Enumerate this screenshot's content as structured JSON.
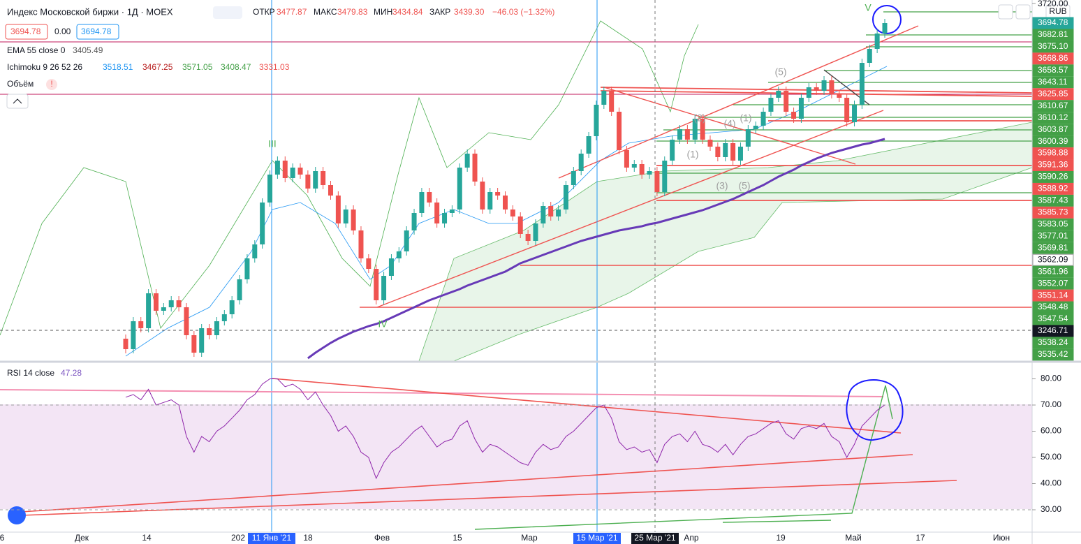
{
  "chart_data": {
    "type": "candlestick",
    "title": "Индекс Московской биржи · 1Д · MOEX",
    "ohlc_header": {
      "open_label": "ОТКР",
      "open": "3477.87",
      "high_label": "МАКС",
      "high": "3479.83",
      "low_label": "МИН",
      "low": "3434.84",
      "close_label": "ЗАКР",
      "close": "3439.30",
      "change": "−46.03 (−1.32%)"
    },
    "price_boxes": [
      "3694.78",
      "0.00",
      "3694.78"
    ],
    "ema_legend": {
      "name": "EMA 55 close 0",
      "value": "3405.49"
    },
    "ichimoku_legend": {
      "name": "Ichimoku 9 26 52 26",
      "values": [
        "3518.51",
        "3467.25",
        "3571.05",
        "3408.47",
        "3331.03"
      ]
    },
    "volume_legend": {
      "name": "Объём",
      "warning": "!"
    },
    "currency": "RUB",
    "ylim": [
      3208,
      3725
    ],
    "yticks": [
      {
        "value": 3720,
        "label": "3720.00"
      }
    ],
    "up_color": "#26a69a",
    "down_color": "#ef5350",
    "candles": [
      [
        3240,
        3246,
        3219,
        3225
      ],
      [
        3225,
        3271,
        3219,
        3265
      ],
      [
        3265,
        3271,
        3249,
        3255
      ],
      [
        3255,
        3311,
        3249,
        3305
      ],
      [
        3305,
        3311,
        3274,
        3280
      ],
      [
        3280,
        3291,
        3274,
        3285
      ],
      [
        3285,
        3301,
        3279,
        3295
      ],
      [
        3295,
        3301,
        3279,
        3285
      ],
      [
        3285,
        3291,
        3239,
        3245
      ],
      [
        3245,
        3251,
        3214,
        3220
      ],
      [
        3220,
        3261,
        3214,
        3255
      ],
      [
        3255,
        3261,
        3239,
        3245
      ],
      [
        3245,
        3271,
        3239,
        3265
      ],
      [
        3265,
        3281,
        3259,
        3275
      ],
      [
        3275,
        3301,
        3269,
        3295
      ],
      [
        3295,
        3331,
        3289,
        3325
      ],
      [
        3325,
        3361,
        3319,
        3355
      ],
      [
        3355,
        3381,
        3349,
        3375
      ],
      [
        3375,
        3441,
        3369,
        3435
      ],
      [
        3435,
        3481,
        3429,
        3475
      ],
      [
        3475,
        3501,
        3469,
        3495
      ],
      [
        3495,
        3501,
        3464,
        3470
      ],
      [
        3470,
        3491,
        3464,
        3485
      ],
      [
        3485,
        3491,
        3469,
        3475
      ],
      [
        3475,
        3481,
        3449,
        3455
      ],
      [
        3455,
        3486,
        3449,
        3480
      ],
      [
        3480,
        3486,
        3454,
        3460
      ],
      [
        3460,
        3466,
        3439,
        3445
      ],
      [
        3445,
        3451,
        3399,
        3405
      ],
      [
        3405,
        3431,
        3399,
        3425
      ],
      [
        3425,
        3431,
        3389,
        3395
      ],
      [
        3395,
        3401,
        3349,
        3355
      ],
      [
        3355,
        3361,
        3334,
        3340
      ],
      [
        3340,
        3346,
        3289,
        3295
      ],
      [
        3295,
        3336,
        3289,
        3330
      ],
      [
        3330,
        3361,
        3324,
        3355
      ],
      [
        3355,
        3371,
        3349,
        3365
      ],
      [
        3365,
        3401,
        3359,
        3395
      ],
      [
        3395,
        3426,
        3389,
        3420
      ],
      [
        3420,
        3456,
        3414,
        3450
      ],
      [
        3450,
        3456,
        3429,
        3435
      ],
      [
        3435,
        3441,
        3399,
        3405
      ],
      [
        3405,
        3426,
        3399,
        3420
      ],
      [
        3420,
        3431,
        3414,
        3425
      ],
      [
        3425,
        3491,
        3419,
        3485
      ],
      [
        3485,
        3511,
        3479,
        3505
      ],
      [
        3505,
        3511,
        3459,
        3465
      ],
      [
        3465,
        3471,
        3419,
        3425
      ],
      [
        3425,
        3456,
        3419,
        3450
      ],
      [
        3450,
        3456,
        3439,
        3445
      ],
      [
        3445,
        3451,
        3419,
        3425
      ],
      [
        3425,
        3431,
        3409,
        3415
      ],
      [
        3415,
        3421,
        3384,
        3390
      ],
      [
        3390,
        3396,
        3374,
        3380
      ],
      [
        3380,
        3411,
        3374,
        3405
      ],
      [
        3405,
        3436,
        3399,
        3430
      ],
      [
        3430,
        3436,
        3409,
        3415
      ],
      [
        3415,
        3431,
        3409,
        3425
      ],
      [
        3425,
        3466,
        3419,
        3460
      ],
      [
        3460,
        3486,
        3454,
        3480
      ],
      [
        3480,
        3511,
        3474,
        3505
      ],
      [
        3505,
        3536,
        3499,
        3530
      ],
      [
        3530,
        3581,
        3524,
        3575
      ],
      [
        3575,
        3601,
        3569,
        3595
      ],
      [
        3595,
        3601,
        3559,
        3565
      ],
      [
        3565,
        3571,
        3504,
        3510
      ],
      [
        3510,
        3516,
        3479,
        3485
      ],
      [
        3485,
        3496,
        3479,
        3490
      ],
      [
        3490,
        3496,
        3469,
        3475
      ],
      [
        3475,
        3486,
        3469,
        3480
      ],
      [
        3480,
        3486,
        3444,
        3450
      ],
      [
        3450,
        3501,
        3444,
        3495
      ],
      [
        3495,
        3531,
        3489,
        3525
      ],
      [
        3525,
        3546,
        3519,
        3540
      ],
      [
        3540,
        3546,
        3519,
        3525
      ],
      [
        3525,
        3561,
        3519,
        3555
      ],
      [
        3555,
        3561,
        3519,
        3525
      ],
      [
        3525,
        3531,
        3509,
        3515
      ],
      [
        3515,
        3521,
        3494,
        3500
      ],
      [
        3500,
        3526,
        3494,
        3520
      ],
      [
        3520,
        3526,
        3489,
        3495
      ],
      [
        3495,
        3521,
        3489,
        3515
      ],
      [
        3515,
        3546,
        3509,
        3540
      ],
      [
        3540,
        3551,
        3534,
        3545
      ],
      [
        3545,
        3571,
        3539,
        3565
      ],
      [
        3565,
        3591,
        3559,
        3585
      ],
      [
        3585,
        3601,
        3579,
        3595
      ],
      [
        3595,
        3601,
        3559,
        3565
      ],
      [
        3565,
        3571,
        3549,
        3555
      ],
      [
        3555,
        3591,
        3549,
        3585
      ],
      [
        3585,
        3606,
        3579,
        3600
      ],
      [
        3600,
        3606,
        3589,
        3595
      ],
      [
        3595,
        3616,
        3589,
        3610
      ],
      [
        3610,
        3616,
        3584,
        3590
      ],
      [
        3590,
        3596,
        3579,
        3585
      ],
      [
        3585,
        3591,
        3544,
        3550
      ],
      [
        3550,
        3581,
        3544,
        3575
      ],
      [
        3575,
        3641,
        3569,
        3635
      ],
      [
        3635,
        3661,
        3629,
        3655
      ],
      [
        3655,
        3683,
        3649,
        3677
      ],
      [
        3677,
        3698,
        3671,
        3692
      ]
    ],
    "ema": {
      "color": "#673ab7",
      "values": [
        null,
        null,
        null,
        null,
        null,
        null,
        null,
        null,
        null,
        null,
        null,
        null,
        null,
        null,
        null,
        null,
        null,
        null,
        null,
        null,
        null,
        null,
        null,
        null,
        3212,
        3220,
        3227,
        3234,
        3240,
        3245,
        3250,
        3254,
        3258,
        3261,
        3265,
        3270,
        3275,
        3280,
        3285,
        3290,
        3295,
        3299,
        3303,
        3307,
        3311,
        3316,
        3320,
        3324,
        3328,
        3332,
        3336,
        3342,
        3348,
        3352,
        3356,
        3360,
        3364,
        3368,
        3372,
        3376,
        3380,
        3383,
        3386,
        3389,
        3392,
        3395,
        3397,
        3399,
        3401,
        3404,
        3406,
        3409,
        3412,
        3415,
        3418,
        3421,
        3424,
        3428,
        3432,
        3436,
        3440,
        3445,
        3450,
        3455,
        3460,
        3466,
        3472,
        3477,
        3482,
        3488,
        3493,
        3498,
        3502,
        3506,
        3509,
        3512,
        3515,
        3518,
        3520,
        3523,
        3526
      ]
    },
    "right_labels": [
      {
        "text": "3694.78",
        "color": "#26a69a"
      },
      {
        "text": "3682.81",
        "color": "#43a047"
      },
      {
        "text": "3675.10",
        "color": "#43a047"
      },
      {
        "text": "3668.86",
        "color": "#ef5350"
      },
      {
        "text": "3658.57",
        "color": "#43a047"
      },
      {
        "text": "3643.11",
        "color": "#43a047"
      },
      {
        "text": "3625.85",
        "color": "#ef5350"
      },
      {
        "text": "3610.67",
        "color": "#43a047"
      },
      {
        "text": "3610.12",
        "color": "#43a047"
      },
      {
        "text": "3603.87",
        "color": "#43a047"
      },
      {
        "text": "3600.39",
        "color": "#43a047"
      },
      {
        "text": "3598.88",
        "color": "#ef5350"
      },
      {
        "text": "3591.36",
        "color": "#ef5350"
      },
      {
        "text": "3590.26",
        "color": "#43a047"
      },
      {
        "text": "3588.92",
        "color": "#ef5350"
      },
      {
        "text": "3587.43",
        "color": "#43a047"
      },
      {
        "text": "3585.73",
        "color": "#ef5350"
      },
      {
        "text": "3583.05",
        "color": "#43a047"
      },
      {
        "text": "3577.01",
        "color": "#43a047"
      },
      {
        "text": "3569.81",
        "color": "#43a047"
      },
      {
        "text": "3562.09",
        "color": "#ffffff"
      },
      {
        "text": "3561.96",
        "color": "#43a047"
      },
      {
        "text": "3552.07",
        "color": "#43a047"
      },
      {
        "text": "3551.14",
        "color": "#ef5350"
      },
      {
        "text": "3548.48",
        "color": "#43a047"
      },
      {
        "text": "3547.54",
        "color": "#43a047"
      },
      {
        "text": "3246.71",
        "color": "#131722"
      },
      {
        "text": "3538.24",
        "color": "#43a047"
      },
      {
        "text": "3535.42",
        "color": "#43a047"
      }
    ],
    "annotations": [
      {
        "text": "III",
        "color": "#4caf50"
      },
      {
        "text": "IV",
        "color": "#4caf50"
      },
      {
        "text": "V",
        "color": "#4caf50"
      },
      {
        "text": "(5)",
        "color": "#9e9e9e"
      },
      {
        "text": "(2)",
        "color": "#9e9e9e"
      },
      {
        "text": "(1)",
        "color": "#9e9e9e"
      },
      {
        "text": "(4)",
        "color": "#9e9e9e"
      },
      {
        "text": "(3)",
        "color": "#9e9e9e"
      },
      {
        "text": "(5)",
        "color": "#9e9e9e"
      },
      {
        "text": "(1)",
        "color": "#9e9e9e"
      }
    ],
    "x_labels": [
      "6",
      "Дек",
      "14",
      "202",
      "11 Янв '21",
      "18",
      "Фев",
      "15",
      "Мар",
      "15 Мар '21",
      "25 Мар '21",
      "Апр",
      "19",
      "Май",
      "17",
      "Июн"
    ],
    "rsi": {
      "name": "RSI 14 close",
      "value": "47.28",
      "color": "#8e24aa",
      "ylim": [
        22,
        86
      ],
      "yticks": [
        {
          "value": 80,
          "label": "80.00"
        },
        {
          "value": 70,
          "label": "70.00"
        },
        {
          "value": 60,
          "label": "60.00"
        },
        {
          "value": 50,
          "label": "50.00"
        },
        {
          "value": 40,
          "label": "40.00"
        },
        {
          "value": 30,
          "label": "30.00"
        }
      ],
      "values": [
        73,
        74,
        72,
        76,
        70,
        71,
        72,
        70,
        58,
        52,
        58,
        56,
        60,
        62,
        65,
        68,
        72,
        74,
        78,
        80,
        80,
        77,
        78,
        76,
        72,
        75,
        70,
        66,
        60,
        62,
        58,
        52,
        50,
        42,
        48,
        52,
        54,
        57,
        60,
        62,
        58,
        54,
        56,
        57,
        62,
        64,
        57,
        52,
        55,
        54,
        52,
        50,
        48,
        47,
        52,
        55,
        53,
        54,
        58,
        60,
        63,
        66,
        69,
        70,
        65,
        56,
        53,
        54,
        52,
        53,
        48,
        55,
        58,
        59,
        56,
        60,
        55,
        54,
        52,
        55,
        51,
        55,
        58,
        59,
        61,
        63,
        64,
        59,
        57,
        61,
        62,
        61,
        63,
        58,
        56,
        50,
        55,
        62,
        65,
        68,
        70
      ]
    }
  }
}
